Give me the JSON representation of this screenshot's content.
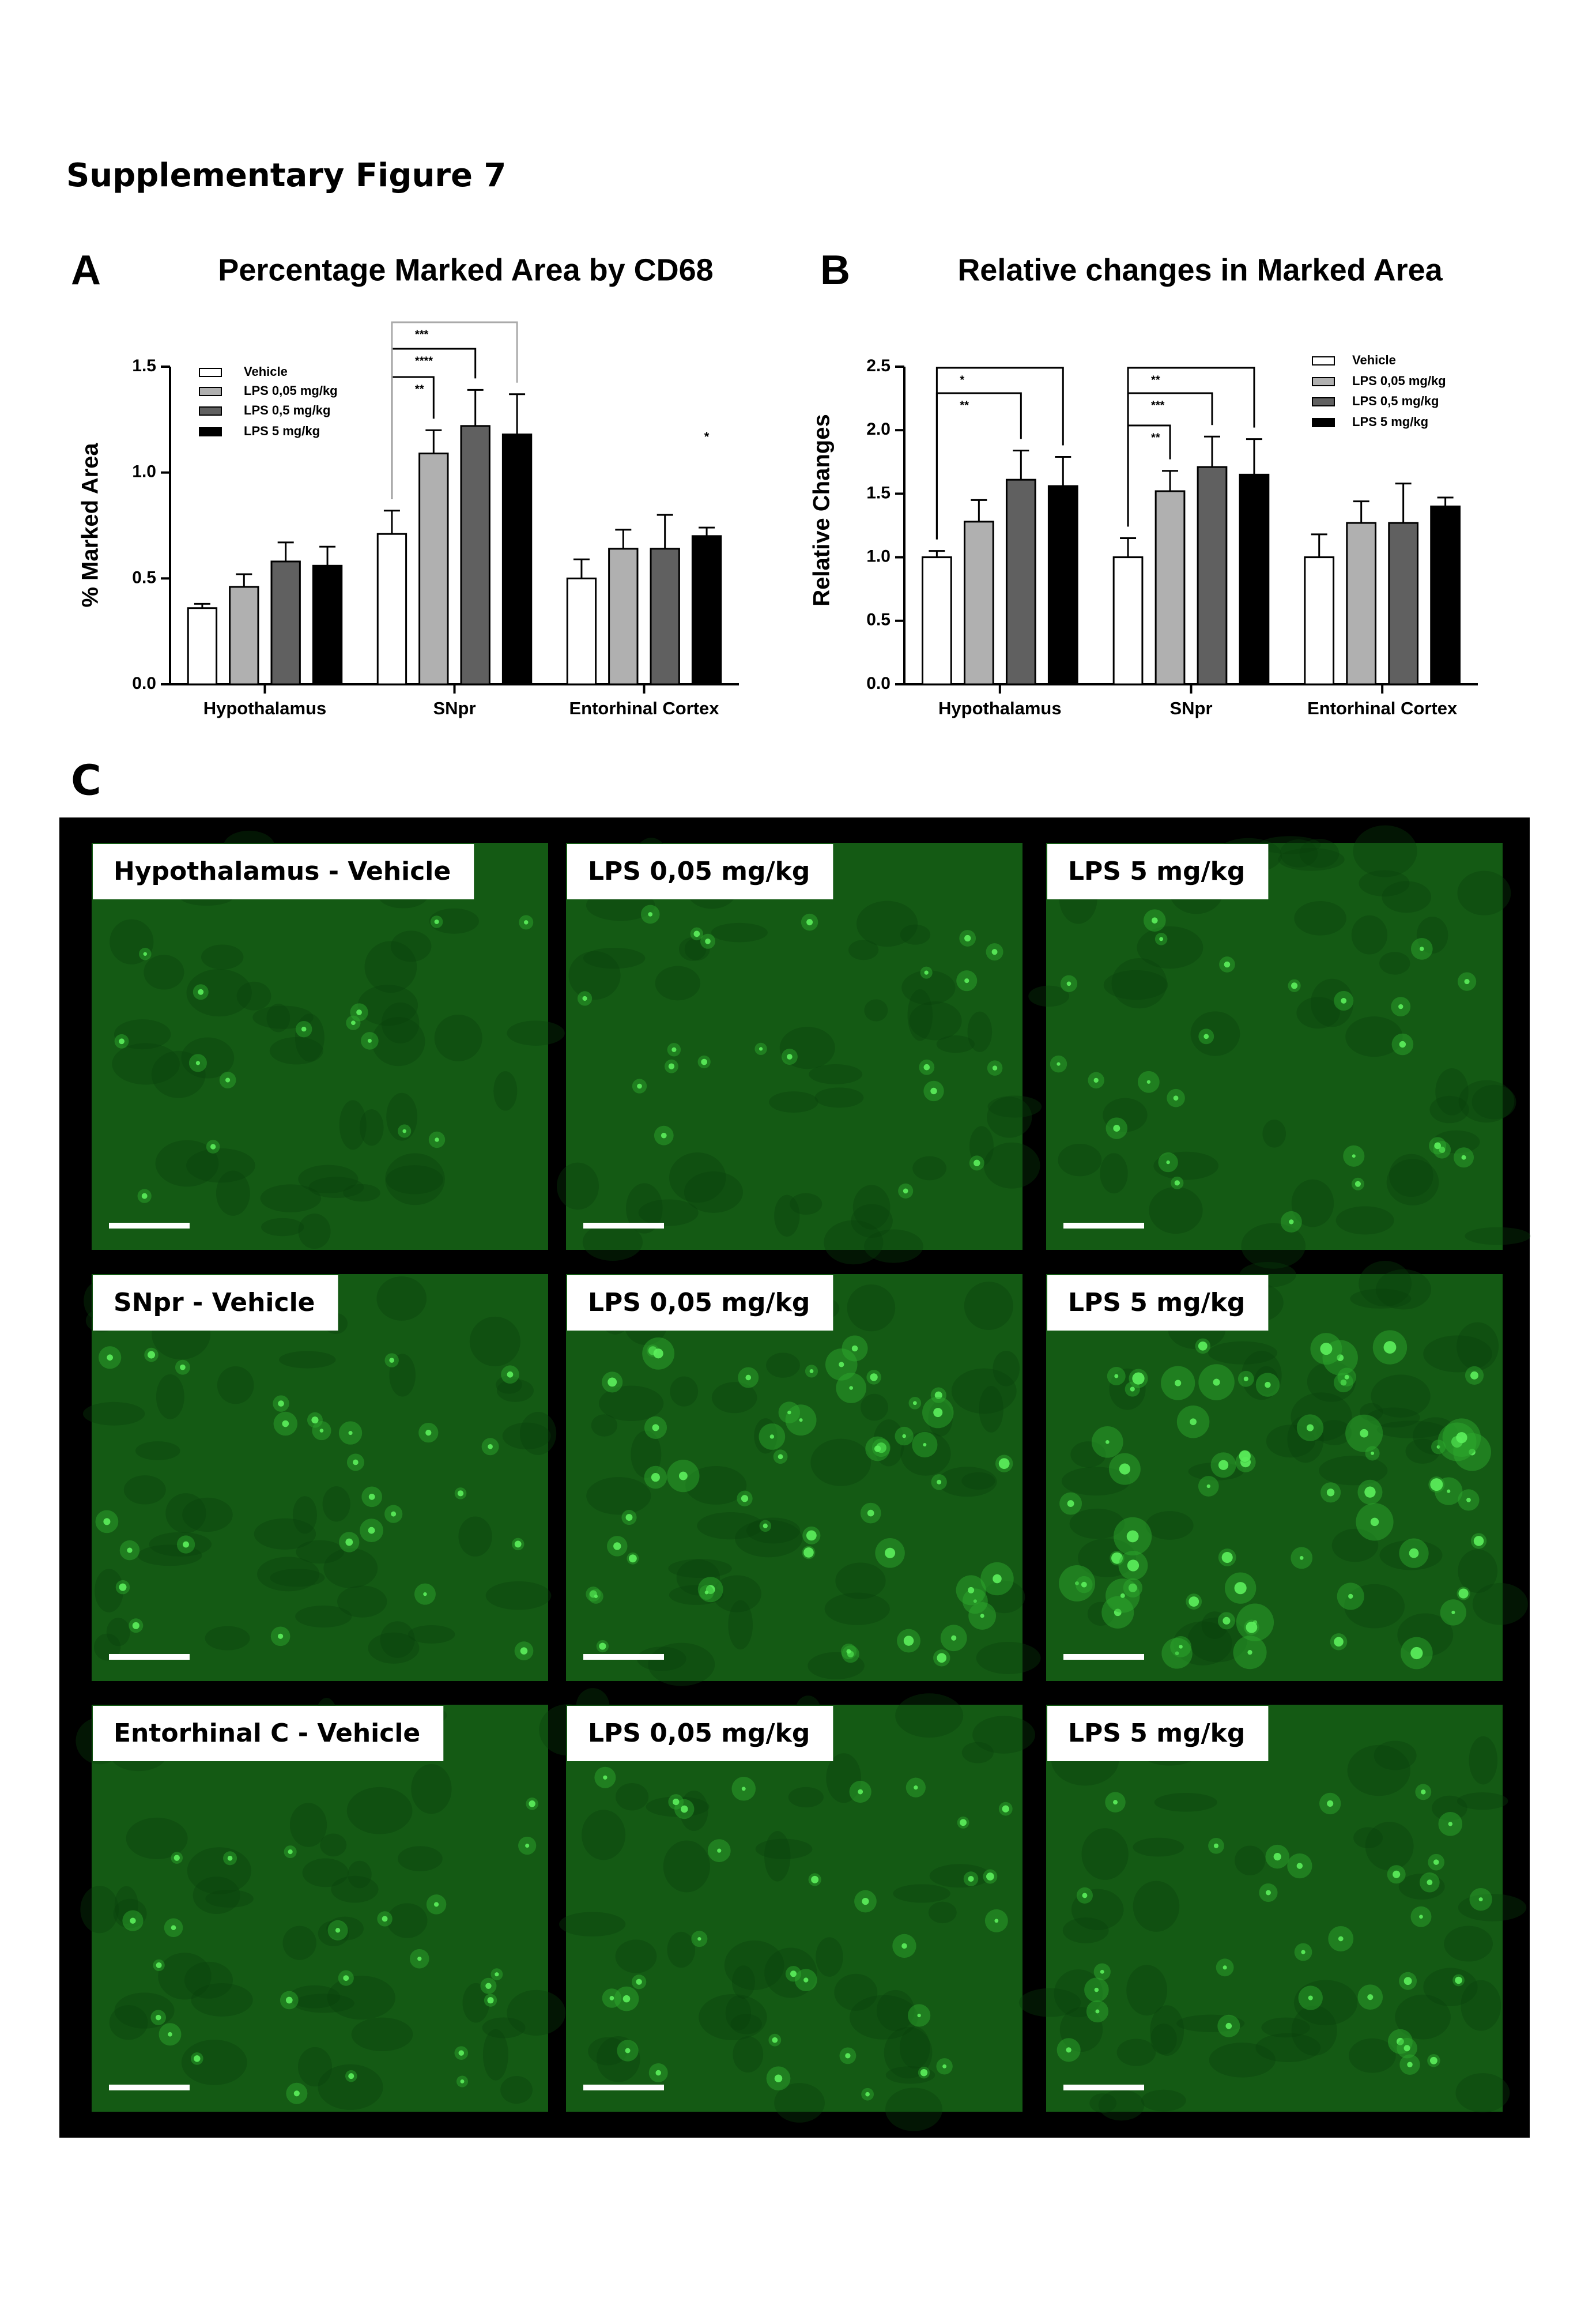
{
  "header": {
    "title": "Supplementary Figure 7"
  },
  "chart_data": [
    {
      "type": "bar",
      "panel_label": "A",
      "title": "Percentage Marked Area by CD68",
      "y_label": "% Marked Area",
      "categories": [
        "Hypothalamus",
        "SNpr",
        "Entorhinal Cortex"
      ],
      "series": [
        {
          "name": "Vehicle",
          "color": "#ffffff",
          "values": [
            0.36,
            0.71,
            0.5
          ],
          "errors": [
            0.02,
            0.11,
            0.09
          ]
        },
        {
          "name": "LPS 0,05 mg/kg",
          "color": "#b0b0b0",
          "values": [
            0.46,
            1.09,
            0.64
          ],
          "errors": [
            0.06,
            0.11,
            0.09
          ]
        },
        {
          "name": "LPS 0,5 mg/kg",
          "color": "#606060",
          "values": [
            0.58,
            1.22,
            0.64
          ],
          "errors": [
            0.09,
            0.17,
            0.16
          ]
        },
        {
          "name": "LPS 5 mg/kg",
          "color": "#000000",
          "values": [
            0.56,
            1.18,
            0.7
          ],
          "errors": [
            0.09,
            0.19,
            0.04
          ]
        }
      ],
      "ylim": [
        0,
        1.5
      ],
      "yticks": [
        {
          "value": 0,
          "label": "0.0"
        },
        0.5,
        {
          "value": 1,
          "label": "1.0"
        },
        1.5
      ],
      "legend": "upper left",
      "annotations": [
        "**",
        "****",
        "***",
        "*"
      ]
    },
    {
      "type": "bar",
      "panel_label": "B",
      "title": "Relative changes in Marked Area",
      "y_label": "Relative Changes",
      "categories": [
        "Hypothalamus",
        "SNpr",
        "Entorhinal Cortex"
      ],
      "series": [
        {
          "name": "Vehicle",
          "color": "#ffffff",
          "values": [
            1.0,
            1.0,
            1.0
          ],
          "errors": [
            0.05,
            0.15,
            0.18
          ]
        },
        {
          "name": "LPS 0,05 mg/kg",
          "color": "#b0b0b0",
          "values": [
            1.28,
            1.52,
            1.27
          ],
          "errors": [
            0.17,
            0.16,
            0.17
          ]
        },
        {
          "name": "LPS 0,5 mg/kg",
          "color": "#606060",
          "values": [
            1.61,
            1.71,
            1.27
          ],
          "errors": [
            0.23,
            0.24,
            0.31
          ]
        },
        {
          "name": "LPS 5 mg/kg",
          "color": "#000000",
          "values": [
            1.56,
            1.65,
            1.4
          ],
          "errors": [
            0.23,
            0.28,
            0.07
          ]
        }
      ],
      "ylim": [
        0,
        2.5
      ],
      "yticks": [
        {
          "value": 0,
          "label": "0.0"
        },
        0.5,
        {
          "value": 1,
          "label": "1.0"
        },
        1.5,
        {
          "value": 2,
          "label": "2.0"
        },
        2.5
      ],
      "legend": "upper right",
      "annotations": [
        "*",
        "**",
        "**",
        "***",
        "**"
      ]
    }
  ],
  "panel_c": {
    "panel_label": "C",
    "images": [
      [
        "Hypothalamus - Vehicle",
        "LPS 0,05 mg/kg",
        "LPS 5 mg/kg"
      ],
      [
        "SNpr - Vehicle",
        "LPS 0,05 mg/kg",
        "LPS 5 mg/kg"
      ],
      [
        "Entorhinal C - Vehicle",
        "LPS 0,05 mg/kg",
        "LPS 5 mg/kg"
      ]
    ]
  }
}
